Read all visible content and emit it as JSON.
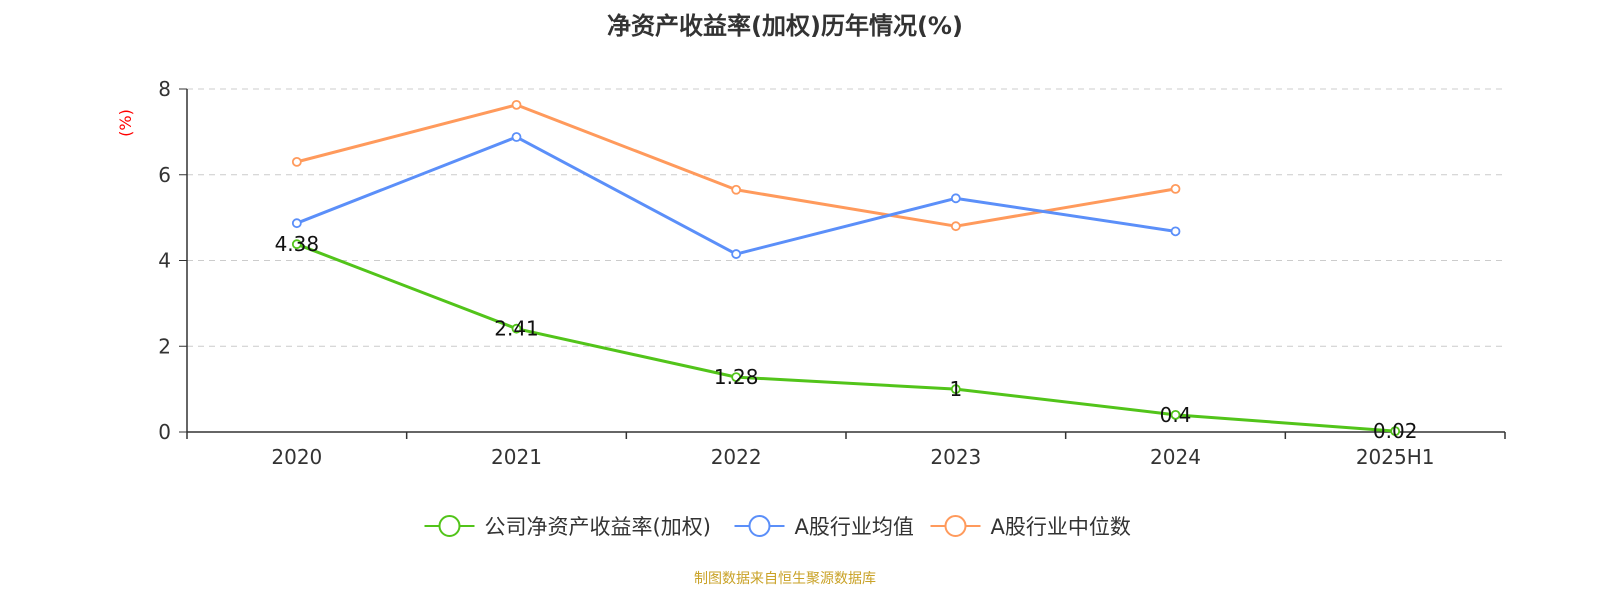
{
  "chart_data": {
    "type": "line",
    "title": "净资产收益率(加权)历年情况(%)",
    "ylabel": "(%)",
    "xlabel": "",
    "categories": [
      "2020",
      "2021",
      "2022",
      "2023",
      "2024",
      "2025H1"
    ],
    "ylim": [
      0,
      8
    ],
    "yticks": [
      0,
      2,
      4,
      6,
      8
    ],
    "grid": true,
    "legend_position": "bottom-center",
    "series": [
      {
        "name": "公司净资产收益率(加权)",
        "color": "#52c41a",
        "show_labels": true,
        "values": [
          4.38,
          2.41,
          1.28,
          1,
          0.4,
          0.02
        ]
      },
      {
        "name": "A股行业均值",
        "color": "#5b8ff9",
        "show_labels": false,
        "values": [
          4.87,
          6.88,
          4.15,
          5.45,
          4.68,
          null
        ]
      },
      {
        "name": "A股行业中位数",
        "color": "#ff9a5c",
        "show_labels": false,
        "values": [
          6.3,
          7.63,
          5.65,
          4.8,
          5.67,
          null
        ]
      }
    ]
  },
  "source": {
    "text": "制图数据来自恒生聚源数据库",
    "color": "#c9a227"
  },
  "axis_label_color": "#ff0000"
}
